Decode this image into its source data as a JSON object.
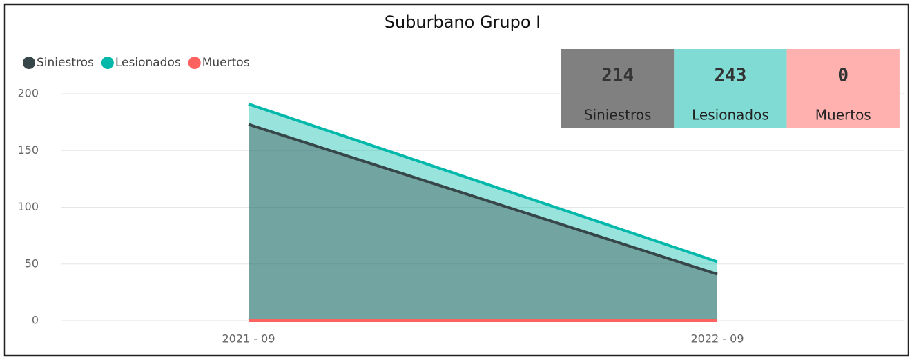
{
  "chart_data": {
    "type": "area",
    "title": "Suburbano Grupo I",
    "categories": [
      "2021 - 09",
      "2022 - 09"
    ],
    "series": [
      {
        "name": "Siniestros",
        "color": "#374649",
        "values": [
          173,
          41
        ]
      },
      {
        "name": "Lesionados",
        "color": "#01B8AA",
        "values": [
          191,
          52
        ]
      },
      {
        "name": "Muertos",
        "color": "#FD625E",
        "values": [
          0,
          0
        ]
      }
    ],
    "ylim": [
      0,
      200
    ],
    "yticks": [
      0,
      50,
      100,
      150,
      200
    ],
    "grid": true,
    "legend": "top-left",
    "cards": [
      {
        "value": "214",
        "label": "Siniestros",
        "color": "#808080"
      },
      {
        "value": "243",
        "label": "Lesionados",
        "color": "#80dbd4"
      },
      {
        "value": "0",
        "label": "Muertos",
        "color": "#feb1af"
      }
    ]
  }
}
